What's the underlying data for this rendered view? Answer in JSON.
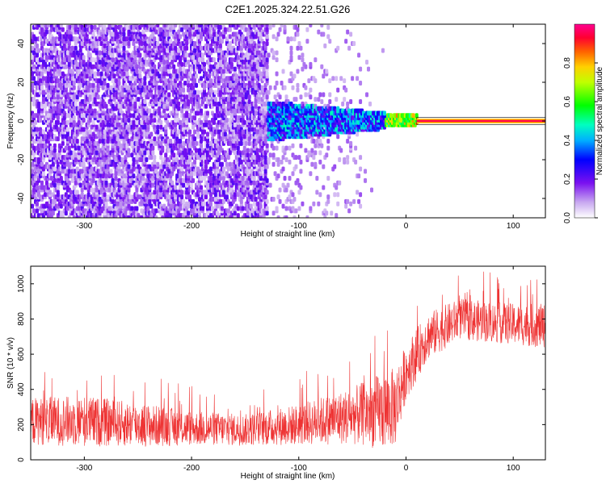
{
  "chart_data": [
    {
      "type": "heatmap",
      "title": "C2E1.2025.324.22.51.G26",
      "xlabel": "Height of straight line (km)",
      "ylabel": "Frequency (Hz)",
      "xlim": [
        -350,
        130
      ],
      "ylim": [
        -50,
        50
      ],
      "xticks": [
        -300,
        -200,
        -100,
        0,
        100
      ],
      "yticks": [
        -40,
        -20,
        0,
        20,
        40
      ],
      "colorbar": {
        "label": "Normalized spectral amplitude",
        "range": [
          0,
          1
        ],
        "ticks": [
          "0.0",
          "0.2",
          "0.4",
          "0.6",
          "0.8"
        ],
        "colormap": "rainbow-white-purple-blue-cyan-green-yellow-red-magenta"
      },
      "regions": [
        {
          "x_from": -350,
          "x_to": -130,
          "freq_from": -50,
          "freq_to": 50,
          "amplitude": 0.15
        },
        {
          "x_from": -130,
          "x_to": -20,
          "freq_from": -10,
          "freq_to": 10,
          "amplitude": 0.35
        },
        {
          "x_from": -20,
          "x_to": 10,
          "freq_from": -2,
          "freq_to": 3,
          "amplitude": 0.7
        },
        {
          "x_from": 10,
          "x_to": 130,
          "freq_from": -1,
          "freq_to": 1,
          "amplitude": 0.95
        }
      ]
    },
    {
      "type": "line",
      "title": "",
      "xlabel": "Height of straight line (km)",
      "ylabel": "SNR (10 * v/v)",
      "xlim": [
        -350,
        130
      ],
      "ylim": [
        0,
        1100
      ],
      "xticks": [
        -300,
        -200,
        -100,
        0,
        100
      ],
      "yticks": [
        0,
        200,
        400,
        600,
        800,
        1000
      ],
      "series": [
        {
          "color": "#ee3333",
          "x": [
            -350,
            -300,
            -250,
            -200,
            -150,
            -100,
            -50,
            -20,
            -10,
            0,
            20,
            50,
            100,
            130
          ],
          "center": [
            220,
            220,
            200,
            180,
            170,
            200,
            250,
            280,
            300,
            500,
            700,
            800,
            770,
            760
          ],
          "spread": [
            150,
            160,
            140,
            110,
            100,
            130,
            180,
            250,
            250,
            180,
            150,
            130,
            130,
            140
          ]
        }
      ]
    }
  ]
}
